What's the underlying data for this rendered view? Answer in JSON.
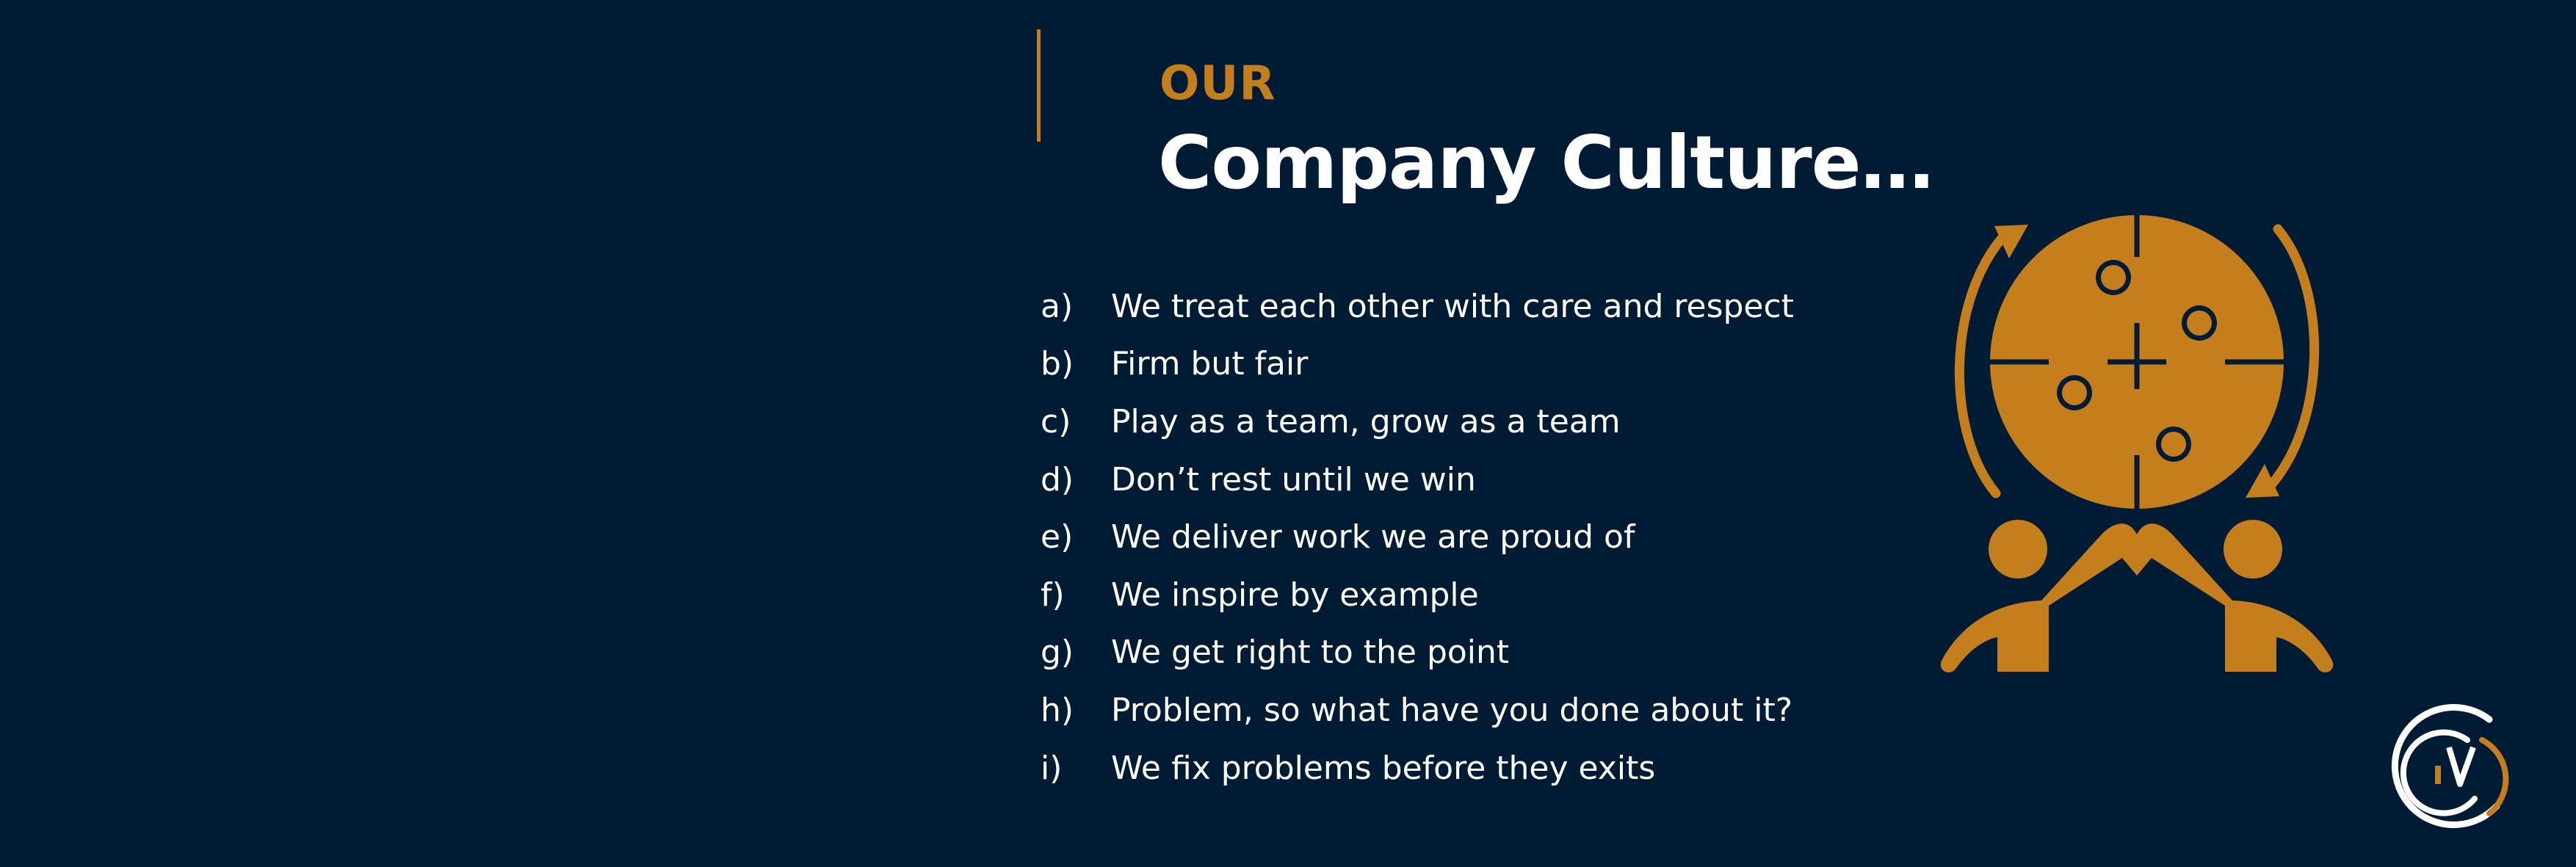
{
  "heading": {
    "eyebrow": "OUR",
    "title": "Company Culture…"
  },
  "values": [
    {
      "marker": "a)",
      "text": "We treat each other with care and respect"
    },
    {
      "marker": "b)",
      "text": "Firm but fair"
    },
    {
      "marker": "c)",
      "text": "Play as a team, grow as a team"
    },
    {
      "marker": "d)",
      "text": "Don’t rest until we win"
    },
    {
      "marker": "e)",
      "text": "We deliver work we are proud of"
    },
    {
      "marker": "f)",
      "text": "We inspire by example"
    },
    {
      "marker": "g)",
      "text": "We get right to the point"
    },
    {
      "marker": "h)",
      "text": "Problem, so what have you done about it?"
    },
    {
      "marker": "i)",
      "text": "We fix problems before they exits"
    }
  ],
  "icons": {
    "illustration": "teamwork-puzzle-globe-icon",
    "logo": "company-logo-mark"
  },
  "colors": {
    "background": "#001b34",
    "accent": "#c47f1c",
    "text": "#ffffff"
  }
}
